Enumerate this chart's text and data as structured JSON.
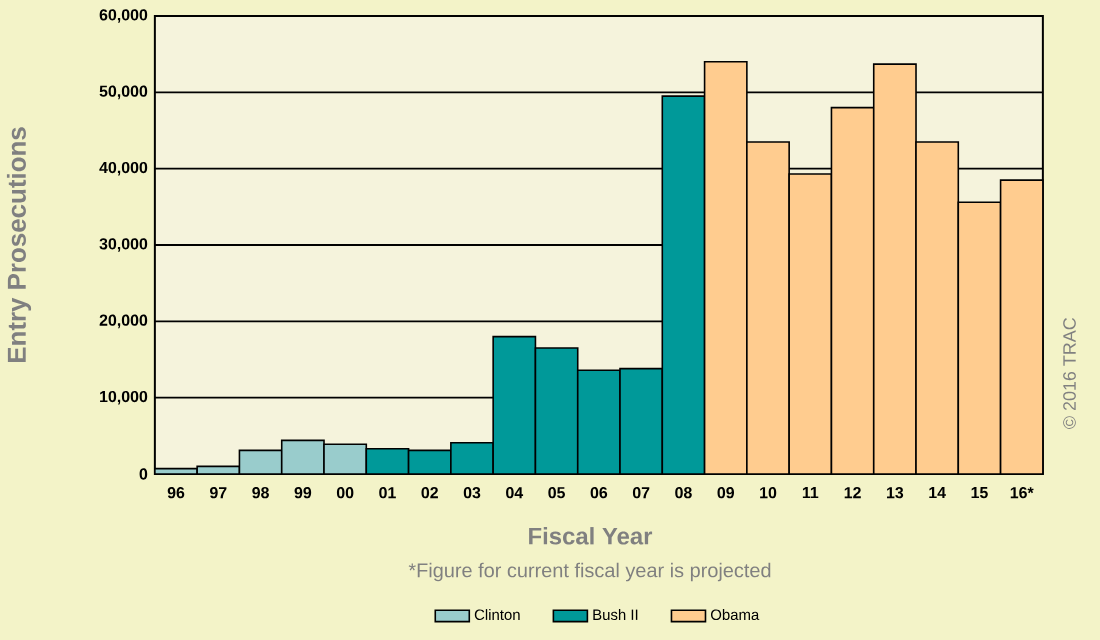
{
  "chart_data": {
    "type": "bar",
    "xlabel": "Fiscal Year",
    "ylabel": "Entry Prosecutions",
    "categories": [
      "96",
      "97",
      "98",
      "99",
      "00",
      "01",
      "02",
      "03",
      "04",
      "05",
      "06",
      "07",
      "08",
      "09",
      "10",
      "11",
      "12",
      "13",
      "14",
      "15",
      "16*"
    ],
    "series": [
      {
        "name": "Clinton",
        "color": "#99cccc",
        "values": [
          700,
          1000,
          3100,
          4400,
          3900,
          null,
          null,
          null,
          null,
          null,
          null,
          null,
          null,
          null,
          null,
          null,
          null,
          null,
          null,
          null,
          null
        ]
      },
      {
        "name": "Bush II",
        "color": "#009999",
        "values": [
          null,
          null,
          null,
          null,
          null,
          3300,
          3100,
          4100,
          18000,
          16500,
          13600,
          13800,
          49500,
          null,
          null,
          null,
          null,
          null,
          null,
          null,
          null
        ]
      },
      {
        "name": "Obama",
        "color": "#ffcc8f",
        "values": [
          null,
          null,
          null,
          null,
          null,
          null,
          null,
          null,
          null,
          null,
          null,
          null,
          null,
          54000,
          43500,
          39300,
          48000,
          53700,
          43500,
          35600,
          38500
        ]
      }
    ],
    "ylim": [
      0,
      60000
    ],
    "yticks": [
      {
        "value": 0,
        "label": "0"
      },
      {
        "value": 10000,
        "label": "10,000"
      },
      {
        "value": 20000,
        "label": "20,000"
      },
      {
        "value": 30000,
        "label": "30,000"
      },
      {
        "value": 40000,
        "label": "40,000"
      },
      {
        "value": 50000,
        "label": "50,000"
      },
      {
        "value": 60000,
        "label": "60,000"
      }
    ],
    "grid": "y",
    "legend": "bottom",
    "annotations": [
      "*Figure for current fiscal year is projected",
      "© 2016 TRAC"
    ]
  }
}
